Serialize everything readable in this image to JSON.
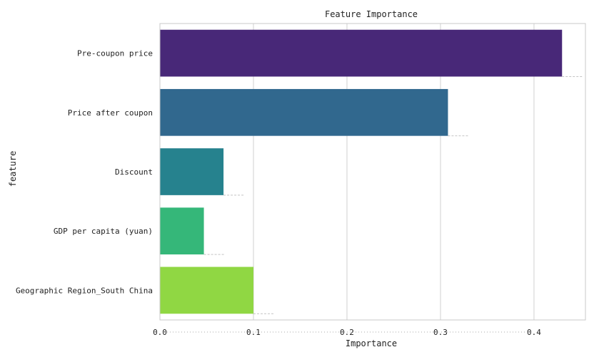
{
  "chart_data": {
    "type": "bar",
    "orientation": "horizontal",
    "title": "Feature Importance",
    "xlabel": "Importance",
    "ylabel": "feature",
    "categories": [
      "Pre-coupon price",
      "Price after coupon",
      "Discount",
      "GDP per capita (yuan)",
      "Geographic Region_South China"
    ],
    "values": [
      0.43,
      0.308,
      0.068,
      0.047,
      0.1
    ],
    "colors": [
      "#482878",
      "#31688e",
      "#26828e",
      "#35b779",
      "#90d743"
    ],
    "x_ticks": [
      "0.0",
      "0.1",
      "0.2",
      "0.3",
      "0.4"
    ],
    "xlim": [
      0,
      0.455
    ],
    "grid": true
  }
}
